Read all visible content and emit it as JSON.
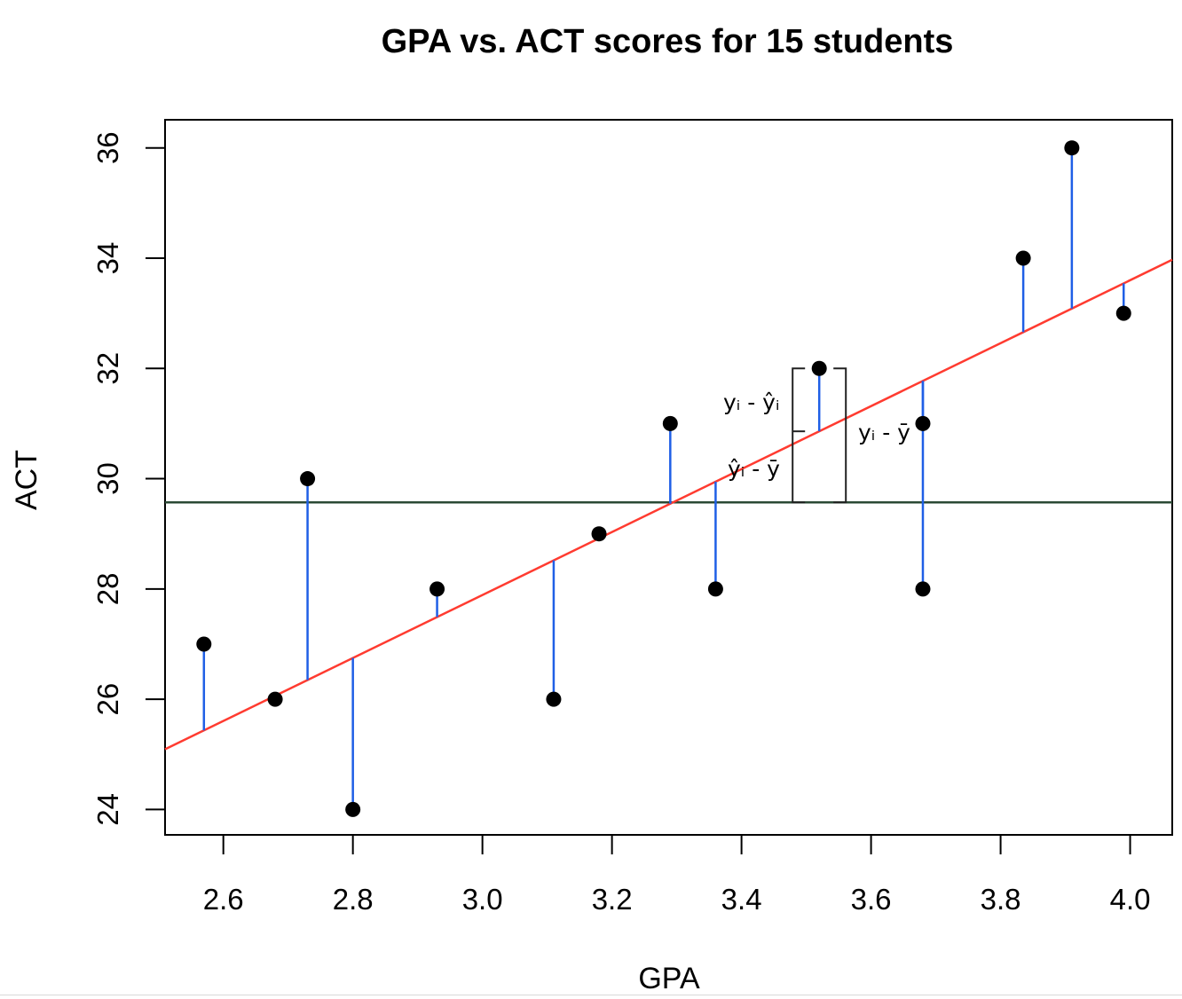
{
  "chart_data": {
    "type": "scatter",
    "title": "GPA vs. ACT scores for 15 students",
    "xlabel": "GPA",
    "ylabel": "ACT",
    "xlim": [
      2.51,
      4.065
    ],
    "ylim": [
      23.54,
      36.51
    ],
    "x_ticks": [
      2.6,
      2.8,
      3.0,
      3.2,
      3.4,
      3.6,
      3.8,
      4.0
    ],
    "x_tick_labels": [
      "2.6",
      "2.8",
      "3.0",
      "3.2",
      "3.4",
      "3.6",
      "3.8",
      "4.0"
    ],
    "y_ticks": [
      24,
      26,
      28,
      30,
      32,
      34,
      36
    ],
    "y_tick_labels": [
      "24",
      "26",
      "28",
      "30",
      "32",
      "34",
      "36"
    ],
    "points": [
      {
        "x": 2.57,
        "y": 27
      },
      {
        "x": 2.68,
        "y": 26
      },
      {
        "x": 2.73,
        "y": 30
      },
      {
        "x": 2.8,
        "y": 24
      },
      {
        "x": 2.93,
        "y": 28
      },
      {
        "x": 3.11,
        "y": 26
      },
      {
        "x": 3.18,
        "y": 29
      },
      {
        "x": 3.29,
        "y": 31
      },
      {
        "x": 3.36,
        "y": 28
      },
      {
        "x": 3.52,
        "y": 32
      },
      {
        "x": 3.68,
        "y": 31
      },
      {
        "x": 3.68,
        "y": 28
      },
      {
        "x": 3.835,
        "y": 34
      },
      {
        "x": 3.91,
        "y": 36
      },
      {
        "x": 3.99,
        "y": 33
      }
    ],
    "regression_line": {
      "intercept": 10.76,
      "slope": 5.71,
      "color": "#ff3b30"
    },
    "mean_line": {
      "y": 29.57,
      "color": "#2b4a35"
    },
    "residual_color": "#1f5fe6",
    "highlight_x": 3.52,
    "annotations": {
      "residual_label": "yᵢ - ŷᵢ",
      "explained_label": "ŷᵢ - ȳ",
      "total_label": "yᵢ - ȳ"
    }
  }
}
